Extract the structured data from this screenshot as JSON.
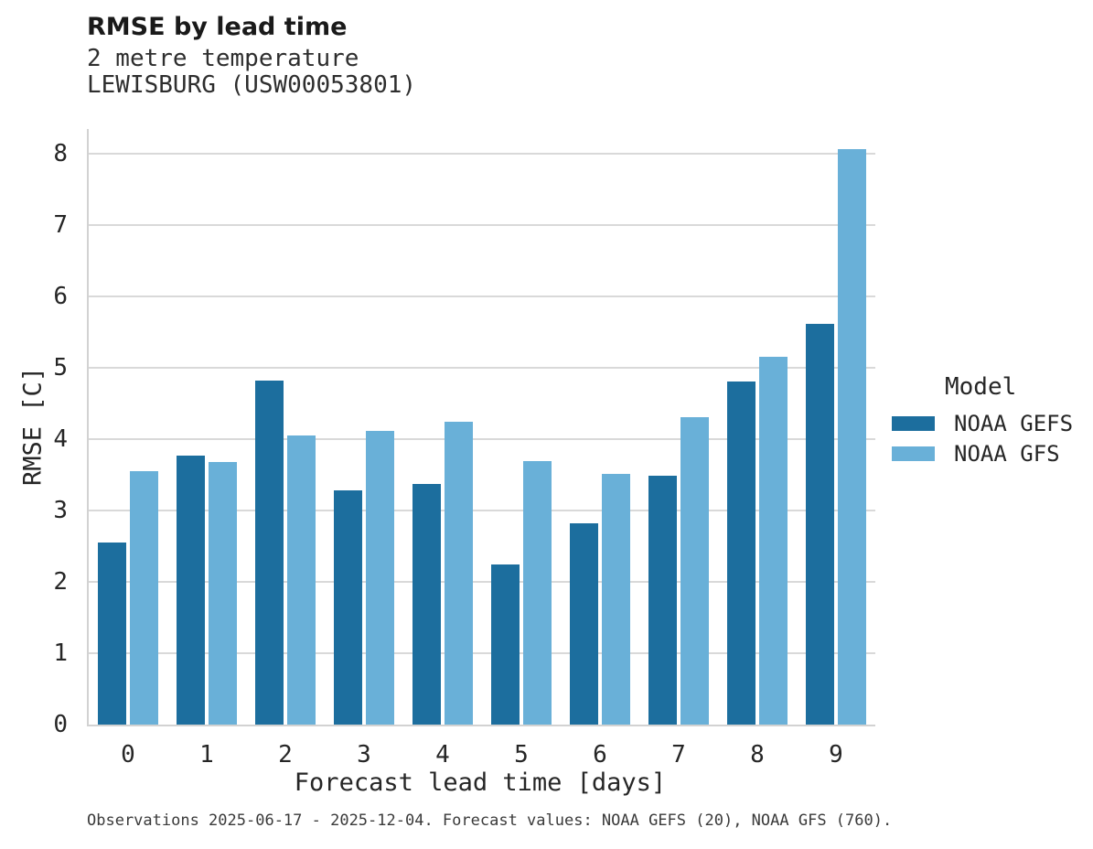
{
  "header": {
    "title": "RMSE by lead time",
    "subtitle_line1": "2 metre temperature",
    "subtitle_line2": "LEWISBURG (USW00053801)"
  },
  "legend": {
    "title": "Model"
  },
  "caption": "Observations 2025-06-17 - 2025-12-04. Forecast values: NOAA GEFS (20), NOAA GFS (760).",
  "colors": {
    "gefs": "#1c6e9e",
    "gfs": "#69b0d8",
    "gridline": "#d9d9d9",
    "axis_line": "#d2d2d2"
  },
  "chart_data": {
    "type": "bar",
    "title": "RMSE by lead time",
    "subtitle": "2 metre temperature",
    "station": "LEWISBURG (USW00053801)",
    "xlabel": "Forecast lead time [days]",
    "ylabel": "RMSE [C]",
    "categories": [
      "0",
      "1",
      "2",
      "3",
      "4",
      "5",
      "6",
      "7",
      "8",
      "9"
    ],
    "series": [
      {
        "name": "NOAA GEFS",
        "color": "#1c6e9e",
        "values": [
          2.55,
          3.77,
          4.82,
          3.28,
          3.37,
          2.24,
          2.82,
          3.49,
          4.81,
          5.62
        ]
      },
      {
        "name": "NOAA GFS",
        "color": "#69b0d8",
        "values": [
          3.55,
          3.68,
          4.05,
          4.12,
          4.24,
          3.69,
          3.52,
          4.31,
          5.16,
          8.07
        ]
      }
    ],
    "ylim": [
      0,
      8.35
    ],
    "yticks": [
      0,
      1,
      2,
      3,
      4,
      5,
      6,
      7,
      8
    ],
    "grid": true,
    "legend_position": "right",
    "legend_title": "Model"
  }
}
